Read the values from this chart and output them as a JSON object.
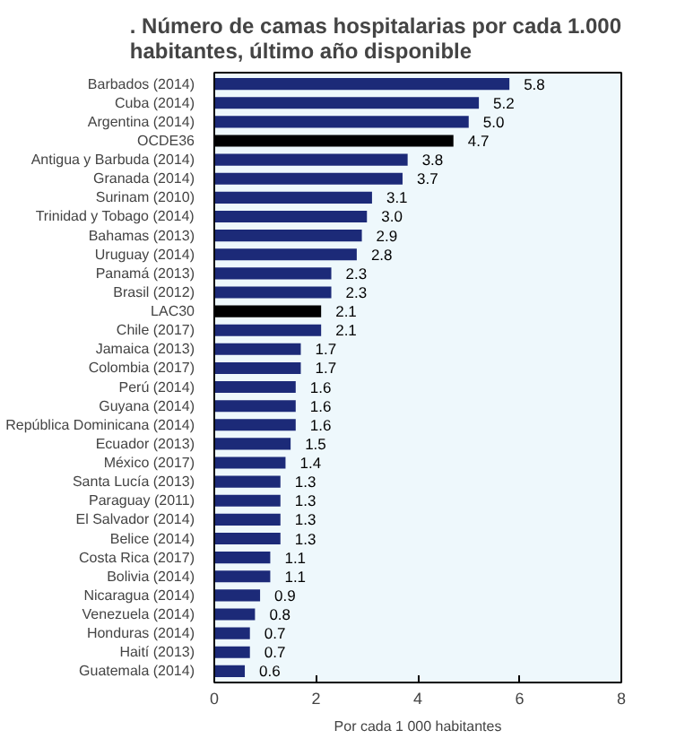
{
  "chart_data": {
    "type": "bar",
    "orientation": "horizontal",
    "title": ". Número de camas hospitalarias por cada 1.000\nhabitantes, último año disponible",
    "xlabel": "Por cada 1 000 habitantes",
    "categories": [
      "Barbados (2014)",
      "Cuba (2014)",
      "Argentina (2014)",
      "OCDE36",
      "Antigua y Barbuda (2014)",
      "Granada (2014)",
      "Surinam (2010)",
      "Trinidad y Tobago (2014)",
      "Bahamas (2013)",
      "Uruguay (2014)",
      "Panamá (2013)",
      "Brasil (2012)",
      "LAC30",
      "Chile (2017)",
      "Jamaica (2013)",
      "Colombia (2017)",
      "Perú (2014)",
      "Guyana (2014)",
      "República Dominicana (2014)",
      "Ecuador (2013)",
      "México (2017)",
      "Santa Lucía (2013)",
      "Paraguay (2011)",
      "El Salvador (2014)",
      "Belice (2014)",
      "Costa Rica (2017)",
      "Bolivia (2014)",
      "Nicaragua (2014)",
      "Venezuela (2014)",
      "Honduras (2014)",
      "Haití (2013)",
      "Guatemala (2014)"
    ],
    "values": [
      5.8,
      5.2,
      5.0,
      4.7,
      3.8,
      3.7,
      3.1,
      3.0,
      2.9,
      2.8,
      2.3,
      2.3,
      2.1,
      2.1,
      1.7,
      1.7,
      1.6,
      1.6,
      1.6,
      1.5,
      1.4,
      1.3,
      1.3,
      1.3,
      1.3,
      1.1,
      1.1,
      0.9,
      0.8,
      0.7,
      0.7,
      0.6
    ],
    "colors": [
      "#1c2a78",
      "#1c2a78",
      "#1c2a78",
      "#000000",
      "#1c2a78",
      "#1c2a78",
      "#1c2a78",
      "#1c2a78",
      "#1c2a78",
      "#1c2a78",
      "#1c2a78",
      "#1c2a78",
      "#000000",
      "#1c2a78",
      "#1c2a78",
      "#1c2a78",
      "#1c2a78",
      "#1c2a78",
      "#1c2a78",
      "#1c2a78",
      "#1c2a78",
      "#1c2a78",
      "#1c2a78",
      "#1c2a78",
      "#1c2a78",
      "#1c2a78",
      "#1c2a78",
      "#1c2a78",
      "#1c2a78",
      "#1c2a78",
      "#1c2a78",
      "#1c2a78"
    ],
    "value_labels": [
      "5.8",
      "5.2",
      "5.0",
      "4.7",
      "3.8",
      "3.7",
      "3.1",
      "3.0",
      "2.9",
      "2.8",
      "2.3",
      "2.3",
      "2.1",
      "2.1",
      "1.7",
      "1.7",
      "1.6",
      "1.6",
      "1.6",
      "1.5",
      "1.4",
      "1.3",
      "1.3",
      "1.3",
      "1.3",
      "1.1",
      "1.1",
      "0.9",
      "0.8",
      "0.7",
      "0.7",
      "0.6"
    ],
    "xlim": [
      0,
      8
    ],
    "xticks": [
      0,
      2,
      4,
      6,
      8
    ],
    "grid": false
  }
}
